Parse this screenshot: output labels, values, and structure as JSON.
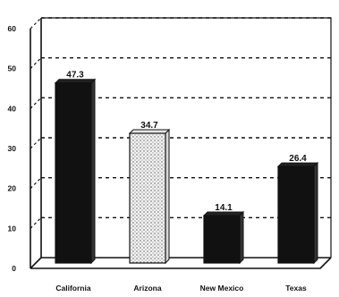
{
  "chart_data": {
    "type": "bar",
    "categories": [
      "California",
      "Arizona",
      "New Mexico",
      "Texas"
    ],
    "values": [
      47.3,
      34.7,
      14.1,
      26.4
    ],
    "value_labels": [
      "47.3",
      "34.7",
      "14.1",
      "26.4"
    ],
    "ylim": [
      0,
      60
    ],
    "yticks": [
      "0",
      "10",
      "20",
      "30",
      "40",
      "50",
      "60"
    ],
    "grid": true,
    "bar_fills": [
      "#111111",
      "dotted",
      "#111111",
      "#111111"
    ],
    "colors": {
      "bar": "#111111",
      "dotted_bg": "#f3f3f3",
      "axis": "#111111"
    }
  }
}
